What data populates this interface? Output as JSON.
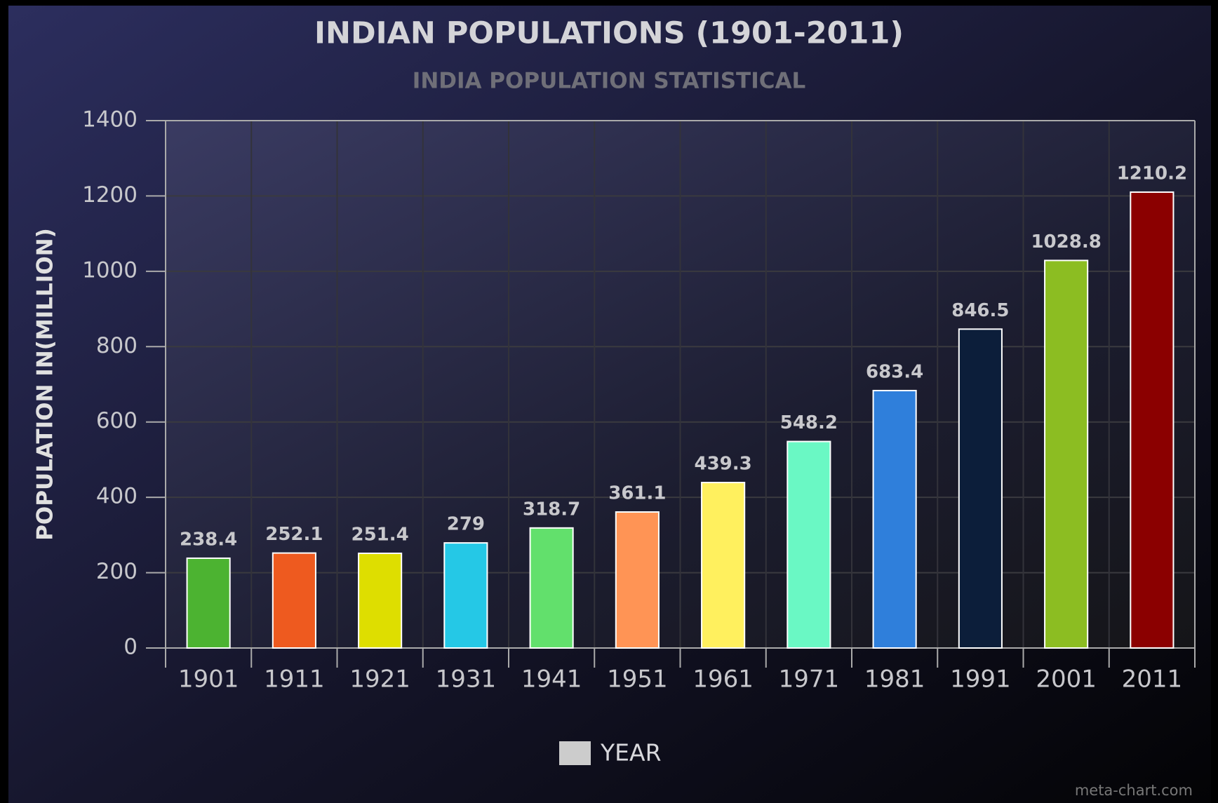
{
  "chart_data": {
    "type": "bar",
    "title": "INDIAN POPULATIONS (1901-2011)",
    "subtitle": "INDIA POPULATION STATISTICAL",
    "y_label": "POPULATION IN(MILLION)",
    "watermark": "meta-chart.com",
    "categories": [
      "1901",
      "1911",
      "1921",
      "1931",
      "1941",
      "1951",
      "1961",
      "1971",
      "1981",
      "1991",
      "2001",
      "2011"
    ],
    "series": [
      {
        "name": "YEAR",
        "color": "#cccccc",
        "values": [
          238.4,
          252.1,
          251.4,
          279,
          318.7,
          361.1,
          439.3,
          548.2,
          683.4,
          846.5,
          1028.8,
          1210.2
        ],
        "bar_colors": [
          "#4cb331",
          "#ee5a1f",
          "#dede00",
          "#25c8e6",
          "#62e06c",
          "#ff9455",
          "#fff05e",
          "#6af8c4",
          "#2f7fdb",
          "#0c1e3a",
          "#8cbd22",
          "#8b0000"
        ]
      }
    ],
    "ylim": [
      0,
      1400
    ],
    "yticks": [
      0,
      200,
      400,
      600,
      800,
      1000,
      1200,
      1400
    ],
    "grid": true,
    "legend": "bottom"
  }
}
